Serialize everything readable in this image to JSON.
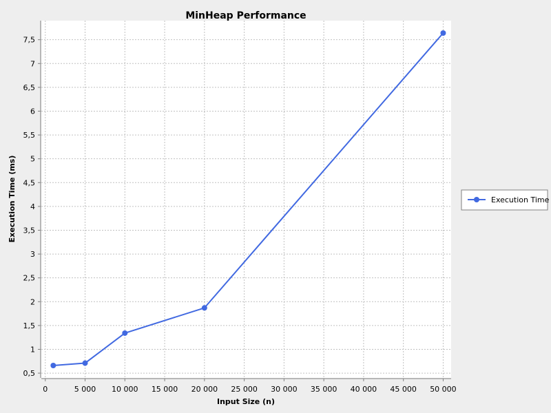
{
  "colors": {
    "background": "#eeeeee",
    "plot_background": "#ffffff",
    "gridline": "#c0c0c0",
    "axis": "#808080",
    "series": "#4169e1"
  },
  "chart_data": {
    "type": "line",
    "title": "MinHeap Performance",
    "xlabel": "Input Size (n)",
    "ylabel": "Execution Time (ms)",
    "xlim": [
      -500,
      51000
    ],
    "ylim": [
      0.4,
      7.9
    ],
    "x_ticks": [
      {
        "value": 0,
        "label": "0"
      },
      {
        "value": 5000,
        "label": "5 000"
      },
      {
        "value": 10000,
        "label": "10 000"
      },
      {
        "value": 15000,
        "label": "15 000"
      },
      {
        "value": 20000,
        "label": "20 000"
      },
      {
        "value": 25000,
        "label": "25 000"
      },
      {
        "value": 30000,
        "label": "30 000"
      },
      {
        "value": 35000,
        "label": "35 000"
      },
      {
        "value": 40000,
        "label": "40 000"
      },
      {
        "value": 45000,
        "label": "45 000"
      },
      {
        "value": 50000,
        "label": "50 000"
      }
    ],
    "y_ticks": [
      {
        "value": 0.5,
        "label": "0,5"
      },
      {
        "value": 1.0,
        "label": "1"
      },
      {
        "value": 1.5,
        "label": "1,5"
      },
      {
        "value": 2.0,
        "label": "2"
      },
      {
        "value": 2.5,
        "label": "2,5"
      },
      {
        "value": 3.0,
        "label": "3"
      },
      {
        "value": 3.5,
        "label": "3,5"
      },
      {
        "value": 4.0,
        "label": "4"
      },
      {
        "value": 4.5,
        "label": "4,5"
      },
      {
        "value": 5.0,
        "label": "5"
      },
      {
        "value": 5.5,
        "label": "5,5"
      },
      {
        "value": 6.0,
        "label": "6"
      },
      {
        "value": 6.5,
        "label": "6,5"
      },
      {
        "value": 7.0,
        "label": "7"
      },
      {
        "value": 7.5,
        "label": "7,5"
      }
    ],
    "grid": true,
    "legend_position": "right",
    "series": [
      {
        "name": "Execution Time",
        "color": "#4169e1",
        "x": [
          1000,
          5000,
          10000,
          20000,
          50000
        ],
        "y": [
          0.66,
          0.71,
          1.34,
          1.87,
          7.64
        ]
      }
    ]
  }
}
